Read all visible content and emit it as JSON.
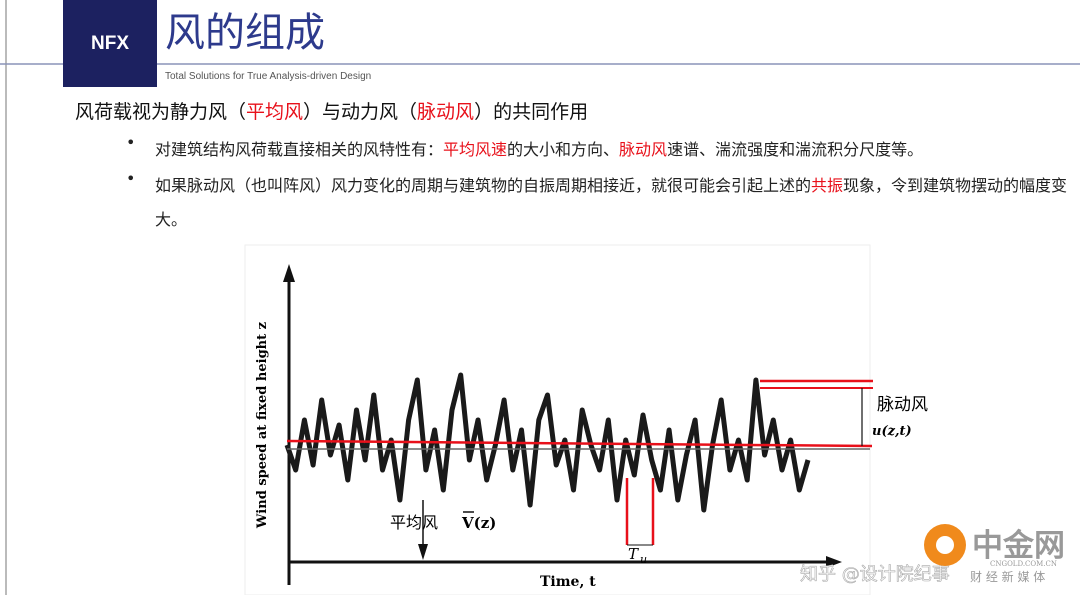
{
  "header": {
    "logo": "NFX",
    "title": "风的组成",
    "tagline": "Total Solutions for True Analysis-driven Design"
  },
  "heading": {
    "segments": [
      "风荷载视为静力风（",
      "平均风",
      "）与动力风（",
      "脉动风",
      "）的共同作用"
    ]
  },
  "bullets": [
    {
      "segments": [
        "对建筑结构风荷载直接相关的风特性有：",
        "平均风速",
        "的大小和方向、",
        "脉动风",
        "速谱、湍流强度和湍流积分尺度等。"
      ]
    },
    {
      "segments": [
        "如果脉动风（也叫阵风）风力变化的周期与建筑物的自振周期相接近，就很可能会引起上述的",
        "共振",
        "现象，令到建筑物摆动的幅度变大。"
      ]
    }
  ],
  "diagram": {
    "y_axis_label": "Wind speed at fixed height z",
    "x_axis_label": "Time, t",
    "fluctuating_label": "脉动风",
    "fluctuating_symbol": "u(z,t)",
    "mean_label": "平均风",
    "mean_symbol": "V(z)",
    "period_symbol": "T",
    "period_subscript": "u"
  },
  "watermarks": {
    "zhihu": "知乎 @设计院纪事",
    "brand": "中金网",
    "domain": "CNGOLD.COM.CN",
    "slogan": "财 经 新 媒 体"
  }
}
